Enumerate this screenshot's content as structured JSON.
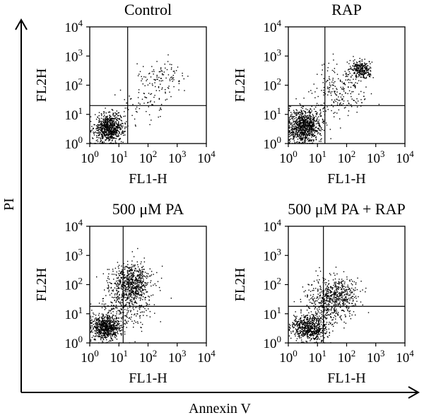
{
  "figure": {
    "outer_xlabel": "Annexin V",
    "outer_ylabel": "PI",
    "axis_color": "#000000",
    "dot_color": "#000000"
  },
  "chart_data": [
    {
      "type": "scatter",
      "title": "Control",
      "xlabel": "FL1-H",
      "ylabel": "FL2H",
      "xscale": "log",
      "yscale": "log",
      "xlim": [
        1,
        10000
      ],
      "ylim": [
        1,
        10000
      ],
      "tick_values": [
        1,
        10,
        100,
        1000,
        10000
      ],
      "tick_base": "10",
      "tick_exponents": [
        "0",
        "1",
        "2",
        "3",
        "4"
      ],
      "quadrant_gate": {
        "x": 20,
        "y": 20
      },
      "populations": [
        {
          "center": [
            4.5,
            3.5
          ],
          "spread": [
            0.25,
            0.25
          ],
          "count": 780
        },
        {
          "center": [
            300,
            180
          ],
          "spread": [
            0.35,
            0.3
          ],
          "count": 110
        },
        {
          "center": [
            60,
            20
          ],
          "spread": [
            0.45,
            0.35
          ],
          "count": 60
        }
      ]
    },
    {
      "type": "scatter",
      "title": "RAP",
      "xlabel": "FL1-H",
      "ylabel": "FL2H",
      "xscale": "log",
      "yscale": "log",
      "xlim": [
        1,
        10000
      ],
      "ylim": [
        1,
        10000
      ],
      "tick_values": [
        1,
        10,
        100,
        1000,
        10000
      ],
      "tick_base": "10",
      "tick_exponents": [
        "0",
        "1",
        "2",
        "3",
        "4"
      ],
      "quadrant_gate": {
        "x": 18,
        "y": 20
      },
      "populations": [
        {
          "center": [
            3.5,
            4.0
          ],
          "spread": [
            0.28,
            0.3
          ],
          "count": 900
        },
        {
          "center": [
            280,
            350
          ],
          "spread": [
            0.18,
            0.16
          ],
          "count": 260
        },
        {
          "center": [
            60,
            60
          ],
          "spread": [
            0.45,
            0.45
          ],
          "count": 220
        }
      ]
    },
    {
      "type": "scatter",
      "title": "500 μM PA",
      "xlabel": "FL1-H",
      "ylabel": "FL2H",
      "xscale": "log",
      "yscale": "log",
      "xlim": [
        1,
        10000
      ],
      "ylim": [
        1,
        10000
      ],
      "tick_values": [
        1,
        10,
        100,
        1000,
        10000
      ],
      "tick_base": "10",
      "tick_exponents": [
        "0",
        "1",
        "2",
        "3",
        "4"
      ],
      "quadrant_gate": {
        "x": 14,
        "y": 18
      },
      "populations": [
        {
          "center": [
            3.5,
            3.5
          ],
          "spread": [
            0.25,
            0.22
          ],
          "count": 700
        },
        {
          "center": [
            25,
            120
          ],
          "spread": [
            0.35,
            0.35
          ],
          "count": 650
        },
        {
          "center": [
            15,
            15
          ],
          "spread": [
            0.45,
            0.4
          ],
          "count": 250
        }
      ]
    },
    {
      "type": "scatter",
      "title": "500 μM PA + RAP",
      "xlabel": "FL1-H",
      "ylabel": "FL2H",
      "xscale": "log",
      "yscale": "log",
      "xlim": [
        1,
        10000
      ],
      "ylim": [
        1,
        10000
      ],
      "tick_values": [
        1,
        10,
        100,
        1000,
        10000
      ],
      "tick_base": "10",
      "tick_exponents": [
        "0",
        "1",
        "2",
        "3",
        "4"
      ],
      "quadrant_gate": {
        "x": 16,
        "y": 18
      },
      "populations": [
        {
          "center": [
            5,
            3.5
          ],
          "spread": [
            0.3,
            0.22
          ],
          "count": 650
        },
        {
          "center": [
            25,
            30
          ],
          "spread": [
            0.38,
            0.4
          ],
          "count": 480
        },
        {
          "center": [
            60,
            50
          ],
          "spread": [
            0.35,
            0.3
          ],
          "count": 200
        }
      ]
    }
  ]
}
